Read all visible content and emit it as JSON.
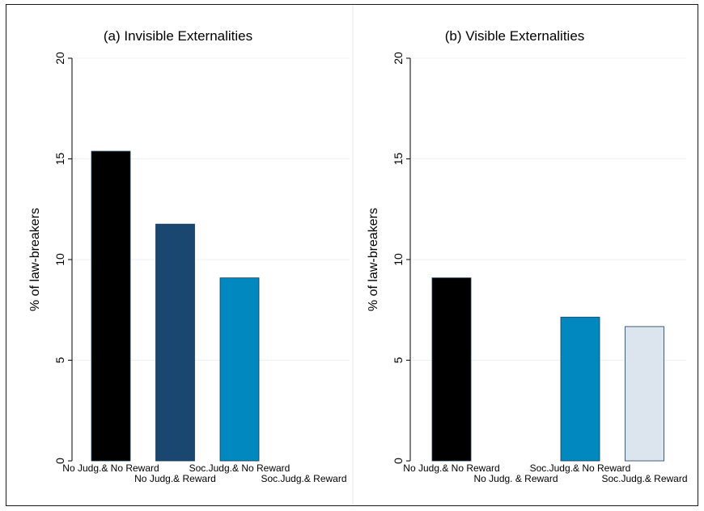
{
  "chart_data": [
    {
      "type": "bar",
      "title": "(a) Invisible Externalities",
      "ylabel": "% of law-breakers",
      "ylim": [
        0,
        20
      ],
      "yticks": [
        0,
        5,
        10,
        15,
        20
      ],
      "grid": true,
      "categories": [
        "No Judg.& No Reward",
        "No Judg.& Reward",
        "Soc.Judg.& No Reward",
        "Soc.Judg.& Reward"
      ],
      "values": [
        15.38,
        11.76,
        9.09,
        0
      ],
      "colors": [
        "#000000",
        "#1a476f",
        "#0088bf",
        "#dce4ee"
      ]
    },
    {
      "type": "bar",
      "title": "(b) Visible Externalities",
      "ylabel": "% of law-breakers",
      "ylim": [
        0,
        20
      ],
      "yticks": [
        0,
        5,
        10,
        15,
        20
      ],
      "grid": true,
      "categories": [
        "No Judg.& No Reward",
        "No Judg. & Reward",
        "Soc.Judg.& No Reward",
        "Soc.Judg.& Reward"
      ],
      "values": [
        9.09,
        0,
        7.14,
        6.67
      ],
      "colors": [
        "#000000",
        "#1a476f",
        "#0088bf",
        "#dce4ee"
      ]
    }
  ]
}
